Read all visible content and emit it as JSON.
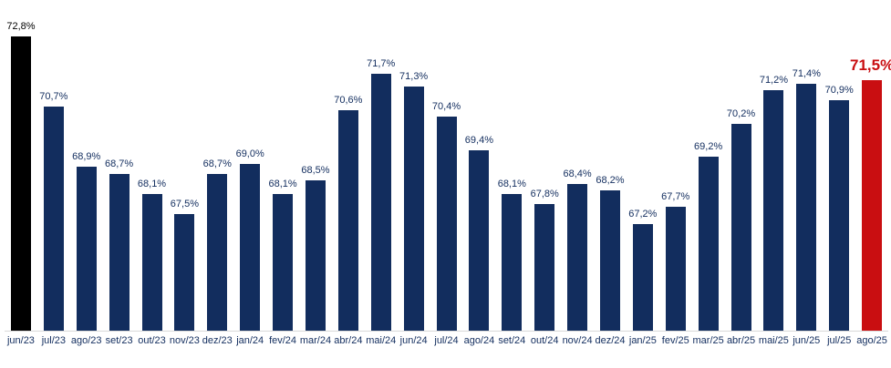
{
  "chart_data": {
    "type": "bar",
    "title": "",
    "xlabel": "",
    "ylabel": "",
    "categories": [
      "jun/23",
      "jul/23",
      "ago/23",
      "set/23",
      "out/23",
      "nov/23",
      "dez/23",
      "jan/24",
      "fev/24",
      "mar/24",
      "abr/24",
      "mai/24",
      "jun/24",
      "jul/24",
      "ago/24",
      "set/24",
      "out/24",
      "nov/24",
      "dez/24",
      "jan/25",
      "fev/25",
      "mar/25",
      "abr/25",
      "mai/25",
      "jun/25",
      "jul/25",
      "ago/25"
    ],
    "values": [
      72.8,
      70.7,
      68.9,
      68.7,
      68.1,
      67.5,
      68.7,
      69.0,
      68.1,
      68.5,
      70.6,
      71.7,
      71.3,
      70.4,
      69.4,
      68.1,
      67.8,
      68.4,
      68.2,
      67.2,
      67.7,
      69.2,
      70.2,
      71.2,
      71.4,
      70.9,
      71.5
    ],
    "value_labels": [
      "72,8%",
      "70,7%",
      "68,9%",
      "68,7%",
      "68,1%",
      "67,5%",
      "68,7%",
      "69,0%",
      "68,1%",
      "68,5%",
      "70,6%",
      "71,7%",
      "71,3%",
      "70,4%",
      "69,4%",
      "68,1%",
      "67,8%",
      "68,4%",
      "68,2%",
      "67,2%",
      "67,7%",
      "69,2%",
      "70,2%",
      "71,2%",
      "71,4%",
      "70,9%",
      "71,5%"
    ],
    "ylim": [
      64,
      73.9
    ],
    "grid": false,
    "legend": null,
    "colors": {
      "bar_default": "#122d5e",
      "bar_first": "#000000",
      "bar_last": "#c90e11",
      "label_default": "#122d5e",
      "label_first": "#000000",
      "label_last": "#c90e11",
      "axis_line": "#d9d9d9",
      "tick_label": "#122d5e"
    },
    "highlight": {
      "first_index_style": "black",
      "last_index_style": "red-bold-label"
    }
  }
}
